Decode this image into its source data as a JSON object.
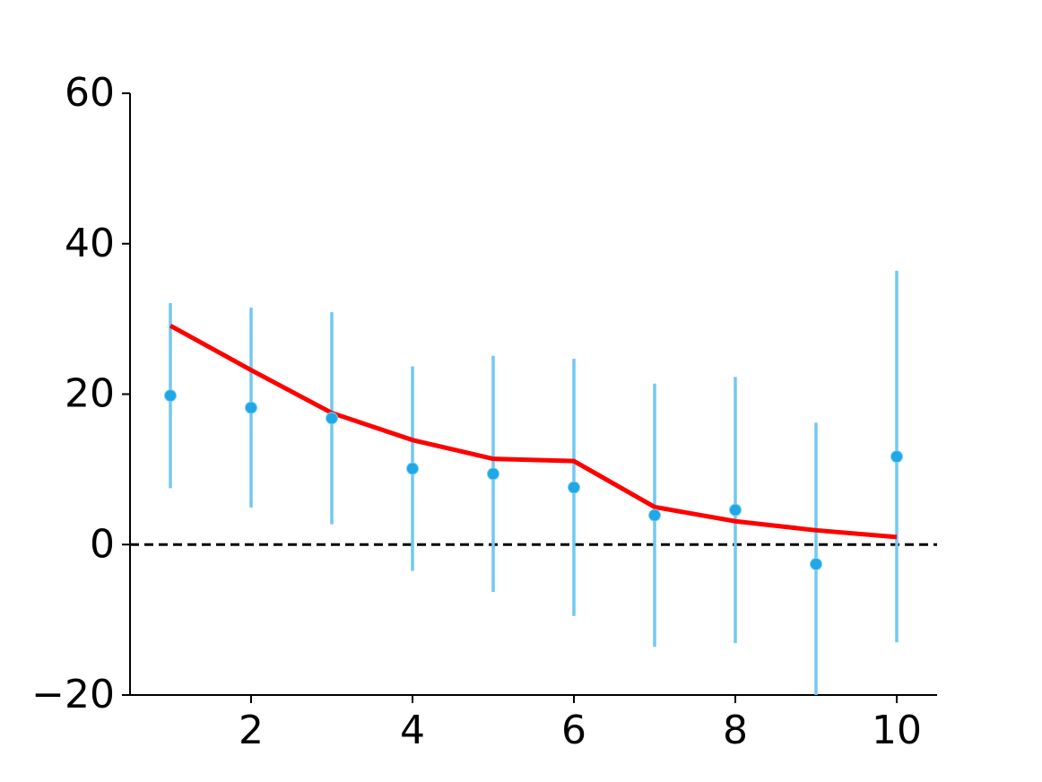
{
  "chart_data": {
    "type": "errorbar",
    "x": [
      1,
      2,
      3,
      4,
      5,
      6,
      7,
      8,
      9,
      10
    ],
    "points": {
      "values": [
        19.8,
        18.2,
        16.8,
        10.1,
        9.4,
        7.6,
        3.9,
        4.6,
        -2.6,
        11.7
      ],
      "errors": [
        12.3,
        13.3,
        14.1,
        13.6,
        15.7,
        17.1,
        17.5,
        17.7,
        18.8,
        24.7
      ],
      "color": "#1fa7e6",
      "error_color": "#72c8f2"
    },
    "line": {
      "values": [
        29.1,
        23.2,
        17.5,
        13.9,
        11.4,
        11.1,
        5.0,
        3.1,
        1.9,
        1.0
      ],
      "color": "#ff0000"
    },
    "hline": 0,
    "xlim": [
      0.5,
      10.5
    ],
    "xticks": [
      2,
      4,
      6,
      8,
      10
    ],
    "ylim": [
      -20,
      60
    ],
    "yticks": [
      {
        "value": -20,
        "label": "−20"
      },
      0,
      20,
      40,
      60
    ]
  }
}
